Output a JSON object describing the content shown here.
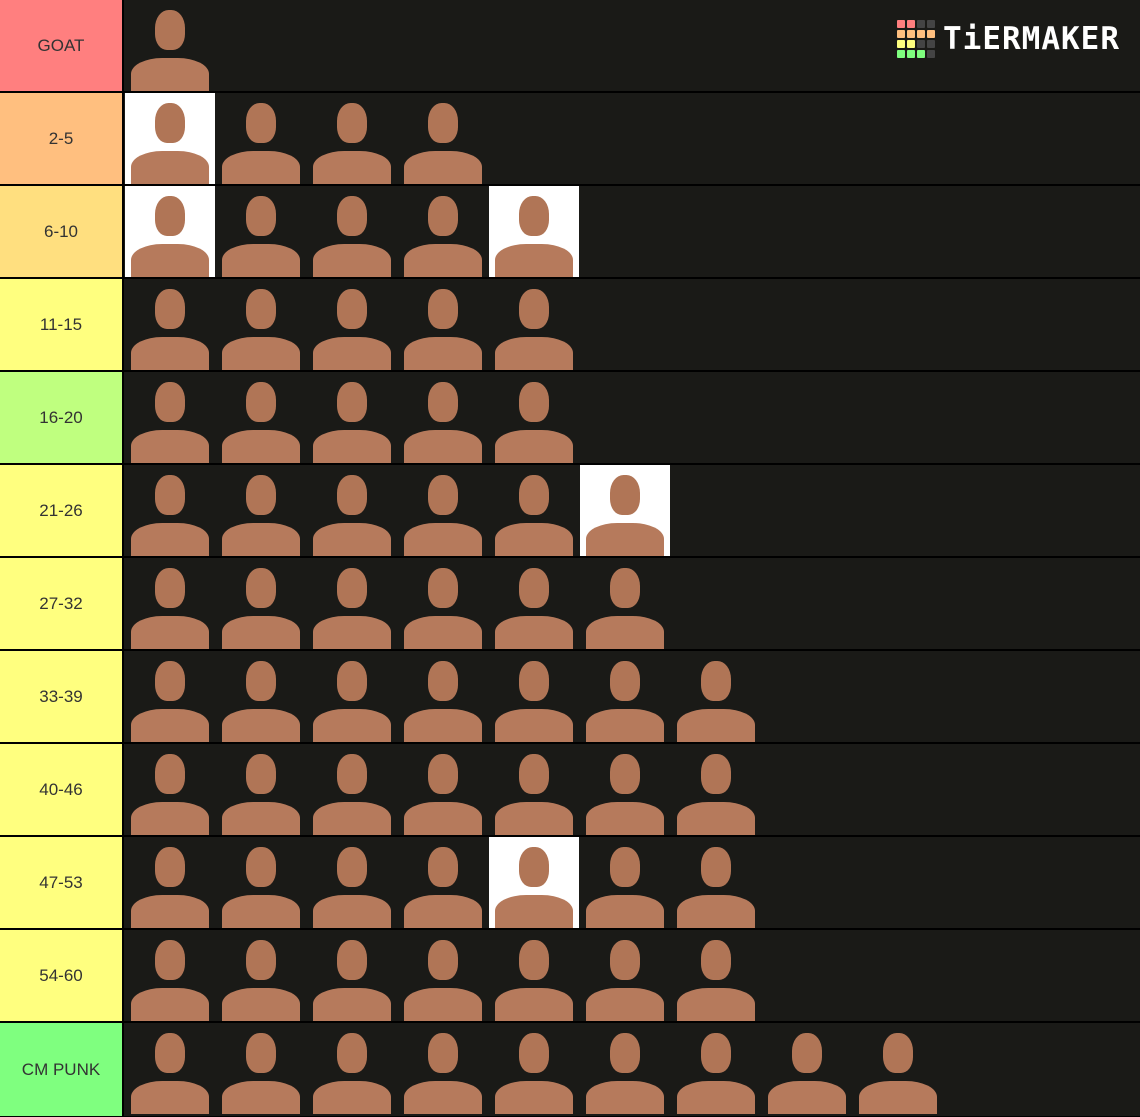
{
  "logo": {
    "text": "TiERMAKER",
    "squares": [
      "#ff7f7f",
      "#ff7f7f",
      "#444",
      "#444",
      "#ffbf7f",
      "#ffbf7f",
      "#ffbf7f",
      "#ffbf7f",
      "#ffff7f",
      "#ffff7f",
      "#444",
      "#444",
      "#7fff7f",
      "#7fff7f",
      "#7fff7f",
      "#444"
    ]
  },
  "tiers": [
    {
      "label": "GOAT",
      "color": "#ff7f7f",
      "items": [
        0
      ]
    },
    {
      "label": "2-5",
      "color": "#ffbf7f",
      "items": [
        1,
        0,
        0,
        0
      ]
    },
    {
      "label": "6-10",
      "color": "#ffdf7f",
      "items": [
        1,
        0,
        0,
        0,
        1
      ]
    },
    {
      "label": "11-15",
      "color": "#ffff7f",
      "items": [
        0,
        0,
        0,
        0,
        0
      ]
    },
    {
      "label": "16-20",
      "color": "#bfff7f",
      "items": [
        0,
        0,
        0,
        0,
        0
      ]
    },
    {
      "label": "21-26",
      "color": "#ffff7f",
      "items": [
        0,
        0,
        0,
        0,
        0,
        1
      ]
    },
    {
      "label": "27-32",
      "color": "#ffff7f",
      "items": [
        0,
        0,
        0,
        0,
        0,
        0
      ]
    },
    {
      "label": "33-39",
      "color": "#ffff7f",
      "items": [
        0,
        0,
        0,
        0,
        0,
        0,
        0
      ]
    },
    {
      "label": "40-46",
      "color": "#ffff7f",
      "items": [
        0,
        0,
        0,
        0,
        0,
        0,
        0
      ]
    },
    {
      "label": "47-53",
      "color": "#ffff7f",
      "items": [
        0,
        0,
        0,
        0,
        1,
        0,
        0
      ]
    },
    {
      "label": "54-60",
      "color": "#ffff7f",
      "items": [
        0,
        0,
        0,
        0,
        0,
        0,
        0
      ]
    },
    {
      "label": "CM PUNK",
      "color": "#7fff7f",
      "items": [
        0,
        0,
        0,
        0,
        0,
        0,
        0,
        0,
        0
      ]
    }
  ]
}
